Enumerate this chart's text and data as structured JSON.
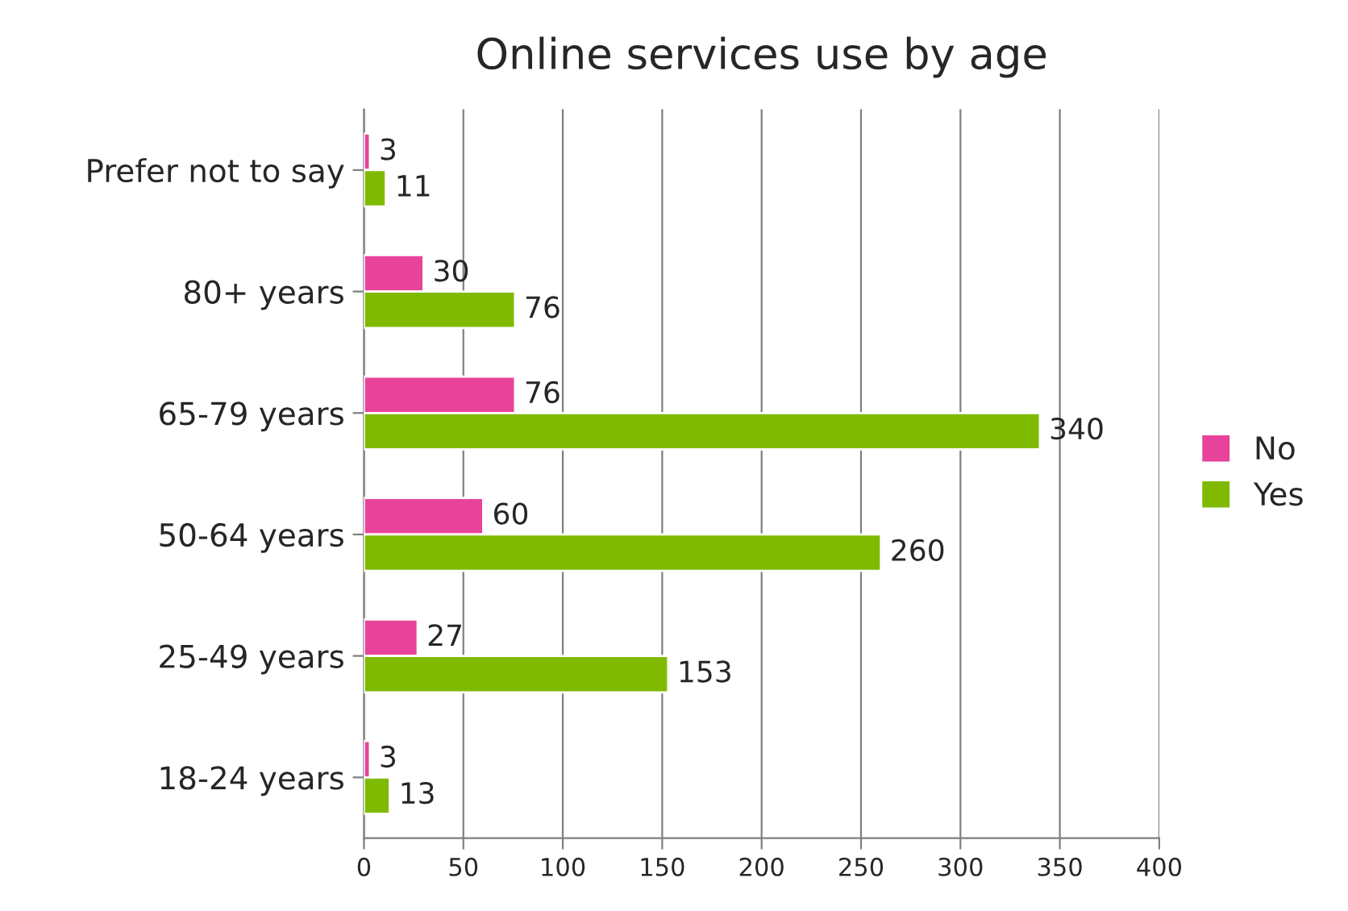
{
  "chart_data": {
    "type": "bar",
    "orientation": "horizontal",
    "title": "Online services use by age",
    "categories": [
      "Prefer not to say",
      "80+ years",
      "65-79 years",
      "50-64 years",
      "25-49 years",
      "18-24 years"
    ],
    "series": [
      {
        "name": "No",
        "color": "#e8439a",
        "values": [
          3,
          30,
          76,
          60,
          27,
          3
        ]
      },
      {
        "name": "Yes",
        "color": "#7fba00",
        "values": [
          11,
          76,
          340,
          260,
          153,
          13
        ]
      }
    ],
    "xlim": [
      0,
      400
    ],
    "xticks": [
      0,
      50,
      100,
      150,
      200,
      250,
      300,
      350,
      400
    ],
    "grid": "x",
    "legend": "right",
    "data_labels": true
  }
}
